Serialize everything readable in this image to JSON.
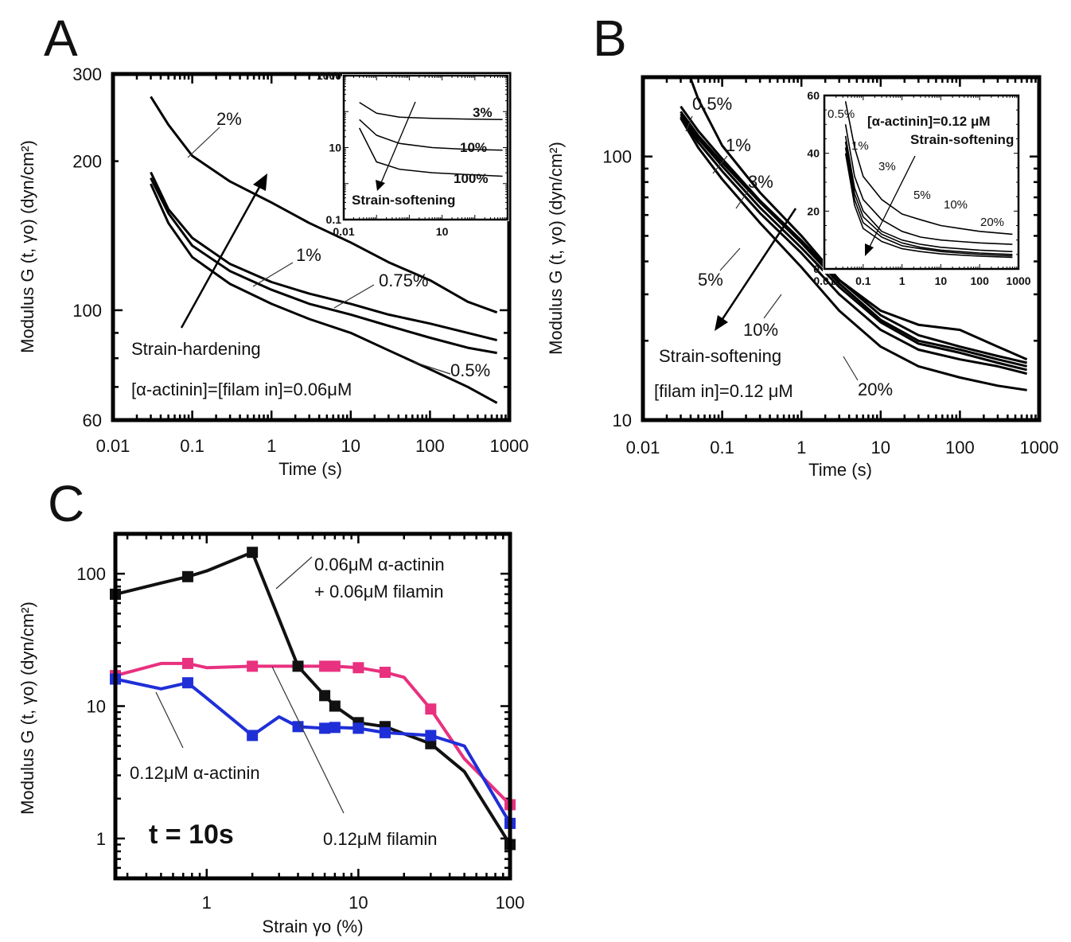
{
  "panels": [
    {
      "letter": "A",
      "chart_data": {
        "type": "line",
        "xlabel": "Time (s)",
        "ylabel": "Modulus G (t, γo) (dyn/cm²)",
        "xscale": "log",
        "yscale": "log",
        "xlim": [
          0.01,
          1000
        ],
        "ylim": [
          60,
          300
        ],
        "xticks": [
          "0.01",
          "0.1",
          "1",
          "10",
          "100",
          "1000"
        ],
        "yticks": [
          "60",
          "100",
          "200",
          "300"
        ],
        "series": [
          {
            "name": "2%",
            "x": [
              0.03,
              0.05,
              0.1,
              0.3,
              1,
              3,
              10,
              30,
              100,
              300,
              700
            ],
            "y": [
              270,
              237,
              205,
              182,
              165,
              150,
              137,
              125,
              115,
              104,
              99
            ]
          },
          {
            "name": "1%",
            "x": [
              0.03,
              0.05,
              0.1,
              0.3,
              1,
              3,
              10,
              30,
              100,
              300,
              700
            ],
            "y": [
              190,
              160,
              140,
              124,
              114,
              108,
              103,
              98,
              94,
              90,
              87
            ]
          },
          {
            "name": "0.75%",
            "x": [
              0.03,
              0.05,
              0.1,
              0.3,
              1,
              3,
              10,
              30,
              100,
              300,
              700
            ],
            "y": [
              185,
              157,
              135,
              120,
              110,
              103,
              98,
              93,
              88,
              84,
              82
            ]
          },
          {
            "name": "0.5%",
            "x": [
              0.03,
              0.05,
              0.1,
              0.3,
              1,
              3,
              10,
              30,
              100,
              300,
              700
            ],
            "y": [
              180,
              150,
              128,
              113,
              103,
              96,
              90,
              83,
              76,
              70,
              65
            ]
          }
        ],
        "annotations": [
          "2%",
          "1%",
          "0.75%",
          "0.5%",
          "Strain-hardening",
          "[α-actinin]=[filam in]=0.06μM"
        ],
        "inset": {
          "xscale": "log",
          "yscale": "log",
          "xlim": [
            0.01,
            1000
          ],
          "ylim": [
            0.1,
            1000
          ],
          "xticks": [
            "0.01",
            "10"
          ],
          "yticks": [
            "0.1",
            "10",
            "1000"
          ],
          "series": [
            {
              "name": "3%",
              "x": [
                0.03,
                0.1,
                0.5,
                5,
                50,
                700
              ],
              "y": [
                180,
                90,
                70,
                65,
                62,
                60
              ]
            },
            {
              "name": "10%",
              "x": [
                0.03,
                0.1,
                0.5,
                5,
                50,
                700
              ],
              "y": [
                60,
                22,
                13,
                10,
                9,
                8.5
              ]
            },
            {
              "name": "100%",
              "x": [
                0.03,
                0.1,
                0.5,
                5,
                50,
                700
              ],
              "y": [
                35,
                4,
                2.5,
                2,
                1.8,
                1.6
              ]
            }
          ],
          "annotations": [
            "3%",
            "10%",
            "100%",
            "Strain-softening"
          ]
        }
      }
    },
    {
      "letter": "B",
      "chart_data": {
        "type": "line",
        "xlabel": "Time (s)",
        "ylabel": "Modulus G (t, γo) (dyn/cm²)",
        "xscale": "log",
        "yscale": "log",
        "xlim": [
          0.01,
          1000
        ],
        "ylim": [
          10,
          200
        ],
        "xticks": [
          "0.01",
          "0.1",
          "1",
          "10",
          "100",
          "1000"
        ],
        "yticks": [
          "10",
          "100"
        ],
        "series": [
          {
            "name": "0.5%",
            "x": [
              0.03,
              0.05,
              0.1,
              0.3,
              1,
              3,
              10,
              30,
              100,
              300,
              700
            ],
            "y": [
              250,
              165,
              110,
              73,
              50,
              34,
              26,
              23,
              22,
              19,
              17
            ]
          },
          {
            "name": "1%",
            "x": [
              0.03,
              0.05,
              0.1,
              0.3,
              1,
              3,
              10,
              30,
              100,
              300,
              700
            ],
            "y": [
              155,
              125,
              98,
              68,
              48,
              34,
              25,
              21,
              19,
              17.5,
              16.5
            ]
          },
          {
            "name": "3%",
            "x": [
              0.03,
              0.05,
              0.1,
              0.3,
              1,
              3,
              10,
              30,
              100,
              300,
              700
            ],
            "y": [
              148,
              120,
              95,
              67,
              47,
              33,
              24,
              20,
              18.5,
              17,
              16
            ]
          },
          {
            "name": "5%",
            "x": [
              0.03,
              0.05,
              0.1,
              0.3,
              1,
              3,
              10,
              30,
              100,
              300,
              700
            ],
            "y": [
              145,
              117,
              92,
              64,
              45,
              32,
              23.5,
              19.5,
              18,
              16.5,
              15.5
            ]
          },
          {
            "name": "10%",
            "x": [
              0.03,
              0.05,
              0.1,
              0.3,
              1,
              3,
              10,
              30,
              100,
              300,
              700
            ],
            "y": [
              142,
              113,
              88,
              61,
              43,
              30,
              22,
              18.5,
              17,
              16,
              15
            ]
          },
          {
            "name": "20%",
            "x": [
              0.03,
              0.05,
              0.1,
              0.3,
              1,
              3,
              10,
              30,
              100,
              300,
              700
            ],
            "y": [
              140,
              108,
              82,
              56,
              38,
              26,
              19,
              16,
              14.5,
              13.5,
              13
            ]
          }
        ],
        "annotations": [
          "0.5%",
          "1%",
          "3%",
          "5%",
          "10%",
          "20%",
          "Strain-softening",
          "[filam in]=0.12 μM"
        ],
        "inset": {
          "xscale": "log",
          "yscale": "linear",
          "xlim": [
            0.01,
            1000
          ],
          "ylim": [
            0,
            60
          ],
          "xticks": [
            "0.01",
            "0.1",
            "1",
            "10",
            "100",
            "1000"
          ],
          "yticks": [
            "0",
            "20",
            "40",
            "60"
          ],
          "series": [
            {
              "name": "0.5%",
              "x": [
                0.035,
                0.06,
                0.1,
                0.3,
                1,
                3,
                10,
                30,
                100,
                700
              ],
              "y": [
                58,
                42,
                32,
                24,
                19,
                17,
                15,
                14,
                13,
                12
              ]
            },
            {
              "name": "1%",
              "x": [
                0.035,
                0.06,
                0.1,
                0.3,
                1,
                3,
                10,
                30,
                100,
                700
              ],
              "y": [
                50,
                32,
                24,
                17,
                13,
                11,
                10,
                9.5,
                9,
                8.5
              ]
            },
            {
              "name": "3%",
              "x": [
                0.035,
                0.06,
                0.1,
                0.3,
                1,
                3,
                10,
                30,
                100,
                700
              ],
              "y": [
                46,
                28,
                20,
                13,
                10,
                8.5,
                7.5,
                7,
                6.5,
                6
              ]
            },
            {
              "name": "5%",
              "x": [
                0.035,
                0.06,
                0.1,
                0.3,
                1,
                3,
                10,
                30,
                100,
                700
              ],
              "y": [
                44,
                26,
                18,
                12,
                9,
                7.5,
                6.5,
                6,
                5.5,
                5
              ]
            },
            {
              "name": "10%",
              "x": [
                0.035,
                0.06,
                0.1,
                0.3,
                1,
                3,
                10,
                30,
                100,
                700
              ],
              "y": [
                42,
                24,
                16,
                11,
                8,
                7,
                6,
                5.5,
                5,
                4.5
              ]
            },
            {
              "name": "20%",
              "x": [
                0.035,
                0.06,
                0.1,
                0.3,
                1,
                3,
                10,
                30,
                100,
                700
              ],
              "y": [
                40,
                22,
                14,
                9.5,
                7,
                6,
                5.2,
                4.8,
                4.4,
                4
              ]
            }
          ],
          "annotations": [
            "0.5%",
            "1%",
            "3%",
            "5%",
            "10%",
            "20%",
            "[α-actinin]=0.12 μM",
            "Strain-softening"
          ]
        }
      }
    },
    {
      "letter": "C",
      "chart_data": {
        "type": "line",
        "xlabel": "Strain γo (%)",
        "ylabel": "Modulus G (t, γo) (dyn/cm²)",
        "xscale": "log",
        "yscale": "log",
        "xlim": [
          0.25,
          100
        ],
        "ylim": [
          0.5,
          200
        ],
        "xticks": [
          "1",
          "10",
          "100"
        ],
        "yticks": [
          "1",
          "10",
          "100"
        ],
        "series": [
          {
            "name": "0.06μM α-actinin + 0.06μM filamin",
            "color": "#111111",
            "x": [
              0.25,
              0.5,
              0.75,
              1,
              2,
              4,
              6,
              7,
              10,
              15,
              30,
              50,
              100
            ],
            "y": [
              70,
              85,
              95,
              105,
              145,
              20,
              12,
              10,
              7.5,
              7,
              5.2,
              3.2,
              0.9
            ]
          },
          {
            "name": "0.12μM filamin",
            "color": "#e8317f",
            "x": [
              0.25,
              0.5,
              0.75,
              1,
              2,
              4,
              6,
              7,
              10,
              15,
              20,
              30,
              50,
              100
            ],
            "y": [
              17,
              21,
              21,
              19.5,
              20,
              20,
              20,
              20,
              19.5,
              18,
              16.5,
              9.5,
              4,
              1.8
            ]
          },
          {
            "name": "0.12μM α-actinin",
            "color": "#1f2fd8",
            "x": [
              0.25,
              0.5,
              0.75,
              1,
              2,
              3,
              4,
              6,
              7,
              10,
              15,
              30,
              50,
              100
            ],
            "y": [
              16,
              13.5,
              15,
              11.5,
              6,
              8.3,
              7,
              6.8,
              6.9,
              6.8,
              6.3,
              6,
              5,
              1.3
            ]
          }
        ],
        "markers": {
          "0.06μM α-actinin + 0.06μM filamin": [
            0.25,
            0.75,
            2,
            4,
            6,
            7,
            10,
            15,
            30,
            100
          ],
          "0.12μM filamin": [
            0.25,
            0.75,
            2,
            6,
            7,
            10,
            15,
            30,
            100
          ],
          "0.12μM α-actinin": [
            0.25,
            0.75,
            2,
            4,
            6,
            7,
            10,
            15,
            30,
            100
          ]
        },
        "annotations": [
          "0.06μM α-actinin",
          "+ 0.06μM filamin",
          "0.12μM α-actinin",
          "0.12μM filamin",
          "t = 10s"
        ]
      }
    }
  ]
}
